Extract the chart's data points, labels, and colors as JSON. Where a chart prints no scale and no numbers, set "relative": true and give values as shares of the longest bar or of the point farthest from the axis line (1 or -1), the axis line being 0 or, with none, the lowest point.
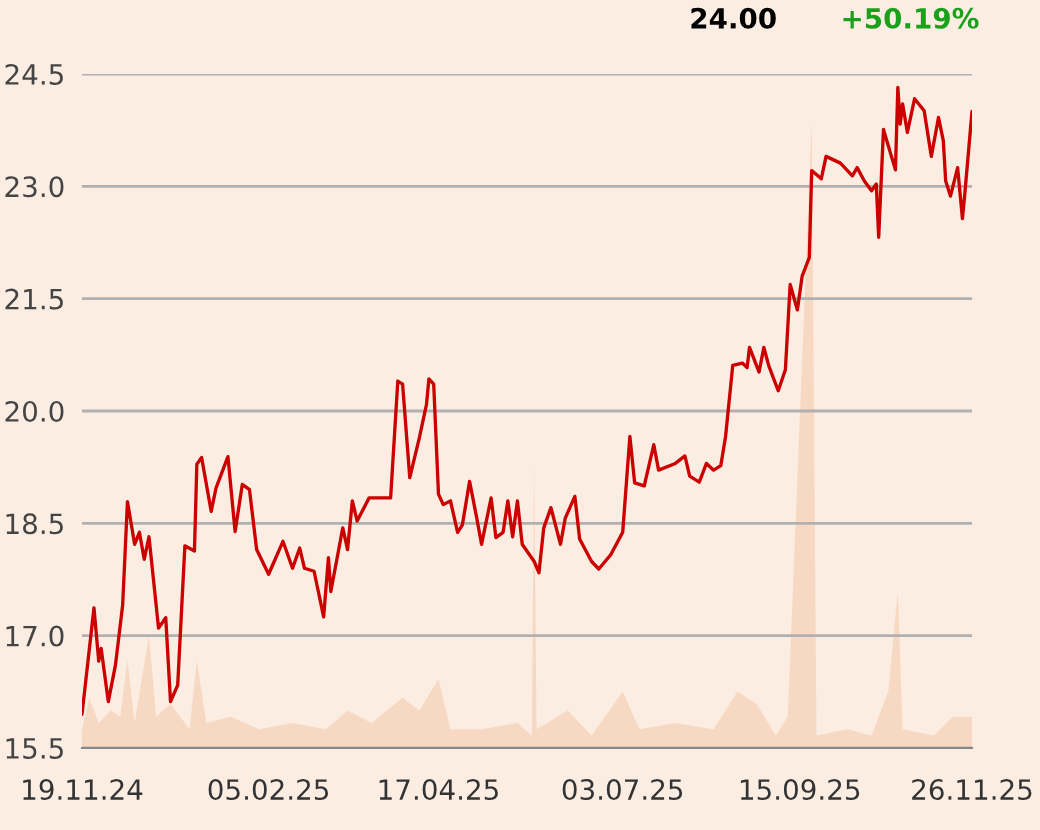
{
  "chart_data": [
    {
      "type": "line",
      "annotations": [
        "24.00",
        "+50.19%"
      ],
      "x": [
        "2024-11-19",
        "2024-11-24",
        "2024-11-26",
        "2024-11-27",
        "2024-11-30",
        "2024-12-03",
        "2024-12-06",
        "2024-12-08",
        "2024-12-11",
        "2024-12-13",
        "2024-12-15",
        "2024-12-17",
        "2024-12-21",
        "2024-12-24",
        "2024-12-26",
        "2024-12-29",
        "2025-01-01",
        "2025-01-05",
        "2025-01-06",
        "2025-01-08",
        "2025-01-12",
        "2025-01-14",
        "2025-01-19",
        "2025-01-22",
        "2025-01-25",
        "2025-01-28",
        "2025-01-31",
        "2025-02-05",
        "2025-02-11",
        "2025-02-15",
        "2025-02-18",
        "2025-02-20",
        "2025-02-24",
        "2025-02-28",
        "2025-03-02",
        "2025-03-03",
        "2025-03-08",
        "2025-03-10",
        "2025-03-12",
        "2025-03-14",
        "2025-03-19",
        "2025-03-28",
        "2025-03-31",
        "2025-04-02",
        "2025-04-05",
        "2025-04-09",
        "2025-04-12",
        "2025-04-13",
        "2025-04-15",
        "2025-04-17",
        "2025-04-19",
        "2025-04-22",
        "2025-04-25",
        "2025-04-27",
        "2025-04-30",
        "2025-05-03",
        "2025-05-05",
        "2025-05-09",
        "2025-05-11",
        "2025-05-14",
        "2025-05-16",
        "2025-05-18",
        "2025-05-20",
        "2025-05-22",
        "2025-05-27",
        "2025-05-29",
        "2025-05-31",
        "2025-06-03",
        "2025-06-07",
        "2025-06-09",
        "2025-06-13",
        "2025-06-15",
        "2025-06-20",
        "2025-06-23",
        "2025-06-28",
        "2025-07-03",
        "2025-07-06",
        "2025-07-08",
        "2025-07-12",
        "2025-07-16",
        "2025-07-18",
        "2025-07-25",
        "2025-07-29",
        "2025-07-31",
        "2025-08-04",
        "2025-08-07",
        "2025-08-10",
        "2025-08-13",
        "2025-08-15",
        "2025-08-18",
        "2025-08-22",
        "2025-08-24",
        "2025-08-25",
        "2025-08-29",
        "2025-08-31",
        "2025-09-02",
        "2025-09-06",
        "2025-09-09",
        "2025-09-11",
        "2025-09-14",
        "2025-09-16",
        "2025-09-19",
        "2025-09-20",
        "2025-09-24",
        "2025-09-26",
        "2025-10-02",
        "2025-10-07",
        "2025-10-09",
        "2025-10-12",
        "2025-10-15",
        "2025-10-17",
        "2025-10-18",
        "2025-10-20",
        "2025-10-25",
        "2025-10-26",
        "2025-10-27",
        "2025-10-28",
        "2025-10-30",
        "2025-11-02",
        "2025-11-06",
        "2025-11-09",
        "2025-11-12",
        "2025-11-14",
        "2025-11-15",
        "2025-11-17",
        "2025-11-20",
        "2025-11-22",
        "2025-11-23",
        "2025-11-26"
      ],
      "series": [
        {
          "color": "#cc0000",
          "values": [
            15.95,
            17.37,
            16.66,
            16.83,
            16.12,
            16.61,
            17.41,
            18.79,
            18.22,
            18.38,
            18.02,
            18.32,
            17.1,
            17.24,
            16.12,
            16.34,
            18.2,
            18.13,
            19.29,
            19.38,
            18.66,
            18.97,
            19.39,
            18.39,
            19.02,
            18.95,
            18.15,
            17.82,
            18.26,
            17.9,
            18.17,
            17.9,
            17.86,
            17.25,
            18.04,
            17.59,
            18.44,
            18.15,
            18.8,
            18.53,
            18.84,
            18.84,
            20.4,
            20.36,
            19.11,
            19.64,
            20.09,
            20.43,
            20.36,
            18.89,
            18.75,
            18.8,
            18.38,
            18.48,
            19.06,
            18.57,
            18.22,
            18.84,
            18.31,
            18.38,
            18.8,
            18.32,
            18.8,
            18.22,
            17.99,
            17.84,
            18.44,
            18.71,
            18.22,
            18.57,
            18.86,
            18.29,
            17.99,
            17.89,
            18.08,
            18.38,
            19.66,
            19.04,
            19.0,
            19.55,
            19.21,
            19.3,
            19.4,
            19.13,
            19.05,
            19.3,
            19.21,
            19.27,
            19.66,
            20.61,
            20.64,
            20.58,
            20.85,
            20.52,
            20.85,
            20.61,
            20.27,
            20.55,
            21.69,
            21.35,
            21.8,
            22.05,
            23.21,
            23.1,
            23.4,
            23.31,
            23.14,
            23.25,
            23.07,
            22.94,
            23.03,
            22.32,
            23.76,
            23.22,
            24.32,
            23.83,
            24.1,
            23.72,
            24.17,
            24.01,
            23.4,
            23.92,
            23.61,
            23.07,
            22.87,
            23.25,
            22.57,
            22.9,
            24.0
          ]
        }
      ],
      "xlim": [
        "2024-11-19",
        "2025-11-26"
      ],
      "xticks": [
        {
          "value": "2024-11-19",
          "label": "19.11.24"
        },
        {
          "value": "2025-02-05",
          "label": "05.02.25"
        },
        {
          "value": "2025-04-17",
          "label": "17.04.25"
        },
        {
          "value": "2025-07-03",
          "label": "03.07.25"
        },
        {
          "value": "2025-09-15",
          "label": "15.09.25"
        },
        {
          "value": "2025-11-26",
          "label": "26.11.25"
        }
      ],
      "ylim": [
        15.5,
        24.5
      ],
      "yticks": [
        15.5,
        {
          "value": 17,
          "label": "17.0"
        },
        18.5,
        {
          "value": 20,
          "label": "20.0"
        },
        21.5,
        {
          "value": 23,
          "label": "23.0"
        },
        24.5
      ],
      "grid": "y"
    },
    {
      "type": "area",
      "relative": true,
      "xlim": [
        "2024-11-19",
        "2025-11-26"
      ],
      "x": [
        "2024-11-19",
        "2024-11-22",
        "2024-11-26",
        "2024-12-01",
        "2024-12-05",
        "2024-12-08",
        "2024-12-11",
        "2024-12-17",
        "2024-12-20",
        "2024-12-26",
        "2025-01-03",
        "2025-01-06",
        "2025-01-10",
        "2025-01-20",
        "2025-02-01",
        "2025-02-15",
        "2025-03-01",
        "2025-03-10",
        "2025-03-20",
        "2025-04-02",
        "2025-04-09",
        "2025-04-17",
        "2025-04-22",
        "2025-05-05",
        "2025-05-20",
        "2025-05-26",
        "2025-05-27",
        "2025-05-28",
        "2025-06-10",
        "2025-06-20",
        "2025-07-03",
        "2025-07-10",
        "2025-07-25",
        "2025-08-10",
        "2025-08-20",
        "2025-08-28",
        "2025-09-05",
        "2025-09-10",
        "2025-09-20",
        "2025-09-22",
        "2025-10-05",
        "2025-10-15",
        "2025-10-22",
        "2025-10-26",
        "2025-10-28",
        "2025-11-10",
        "2025-11-18",
        "2025-11-26"
      ],
      "series": [
        {
          "color": "#f7d9c3",
          "values": [
            0.03,
            0.08,
            0.04,
            0.06,
            0.05,
            0.14,
            0.04,
            0.18,
            0.05,
            0.07,
            0.03,
            0.14,
            0.04,
            0.05,
            0.03,
            0.04,
            0.03,
            0.06,
            0.04,
            0.08,
            0.06,
            0.11,
            0.03,
            0.03,
            0.04,
            0.02,
            0.46,
            0.03,
            0.06,
            0.02,
            0.09,
            0.03,
            0.04,
            0.03,
            0.09,
            0.07,
            0.02,
            0.05,
            1.0,
            0.02,
            0.03,
            0.02,
            0.09,
            0.25,
            0.03,
            0.02,
            0.05,
            0.05
          ]
        }
      ]
    }
  ]
}
